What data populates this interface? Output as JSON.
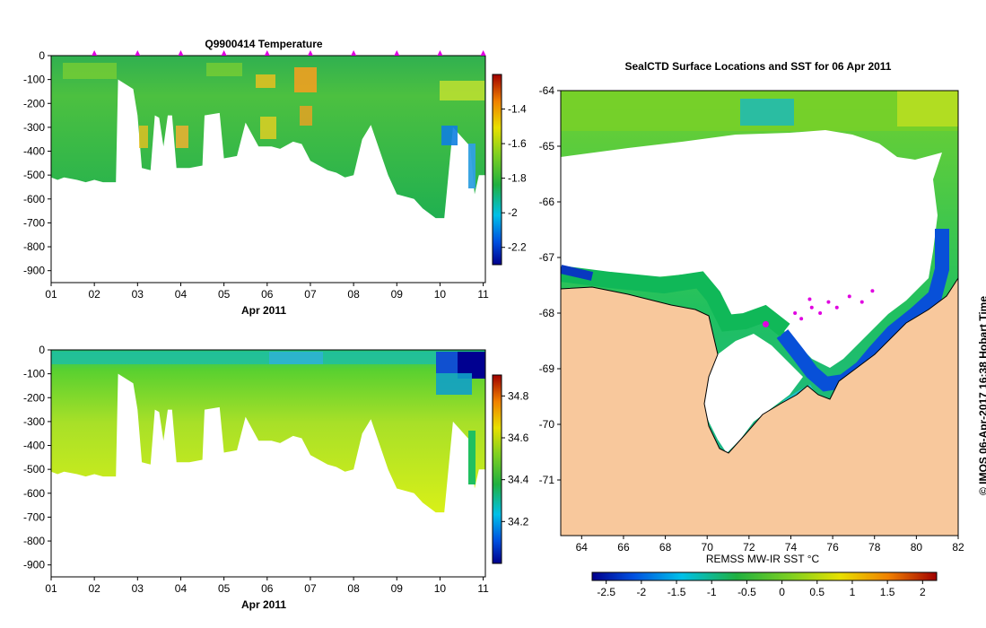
{
  "chart_data": [
    {
      "type": "heatmap",
      "id": "temperature-section",
      "title": "Q9900414  Temperature",
      "xlabel": "Apr 2011",
      "x_ticks": [
        "01",
        "02",
        "03",
        "04",
        "05",
        "06",
        "07",
        "08",
        "09",
        "10",
        "11"
      ],
      "xlim": [
        1,
        11.05
      ],
      "ylim": [
        0,
        -950
      ],
      "y_ticks": [
        0,
        -100,
        -200,
        -300,
        -400,
        -500,
        -600,
        -700,
        -800,
        -900
      ],
      "colorbar": {
        "min": -2.3,
        "max": -1.2,
        "ticks": [
          -1.4,
          -1.6,
          -1.8,
          -2,
          -2.2
        ]
      },
      "profile_markers": [
        2,
        3,
        4,
        5,
        6,
        7,
        8,
        9,
        10,
        11
      ],
      "profile_depths": [
        [
          1.0,
          -510
        ],
        [
          1.15,
          -520
        ],
        [
          1.3,
          -510
        ],
        [
          1.6,
          -520
        ],
        [
          1.8,
          -530
        ],
        [
          2.0,
          -520
        ],
        [
          2.2,
          -530
        ],
        [
          2.5,
          -530
        ],
        [
          2.55,
          -100
        ],
        [
          2.9,
          -140
        ],
        [
          3.0,
          -250
        ],
        [
          3.1,
          -470
        ],
        [
          3.3,
          -480
        ],
        [
          3.4,
          -250
        ],
        [
          3.5,
          -260
        ],
        [
          3.6,
          -380
        ],
        [
          3.7,
          -250
        ],
        [
          3.8,
          -250
        ],
        [
          3.9,
          -470
        ],
        [
          4.2,
          -470
        ],
        [
          4.5,
          -460
        ],
        [
          4.55,
          -250
        ],
        [
          4.9,
          -240
        ],
        [
          5.0,
          -430
        ],
        [
          5.3,
          -420
        ],
        [
          5.5,
          -280
        ],
        [
          5.8,
          -380
        ],
        [
          6.1,
          -380
        ],
        [
          6.3,
          -390
        ],
        [
          6.6,
          -360
        ],
        [
          6.8,
          -370
        ],
        [
          7.0,
          -440
        ],
        [
          7.2,
          -460
        ],
        [
          7.4,
          -480
        ],
        [
          7.6,
          -490
        ],
        [
          7.8,
          -510
        ],
        [
          8.0,
          -500
        ],
        [
          8.2,
          -350
        ],
        [
          8.4,
          -290
        ],
        [
          8.8,
          -500
        ],
        [
          9.0,
          -580
        ],
        [
          9.4,
          -600
        ],
        [
          9.6,
          -640
        ],
        [
          9.9,
          -680
        ],
        [
          10.1,
          -680
        ],
        [
          10.3,
          -300
        ],
        [
          10.7,
          -380
        ],
        [
          10.8,
          -580
        ],
        [
          10.9,
          -500
        ],
        [
          11.05,
          -500
        ]
      ]
    },
    {
      "type": "heatmap",
      "id": "salinity-section",
      "title": "",
      "xlabel": "Apr 2011",
      "x_ticks": [
        "01",
        "02",
        "03",
        "04",
        "05",
        "06",
        "07",
        "08",
        "09",
        "10",
        "11"
      ],
      "ylim": [
        0,
        -950
      ],
      "y_ticks": [
        0,
        -100,
        -200,
        -300,
        -400,
        -500,
        -600,
        -700,
        -800,
        -900
      ],
      "colorbar": {
        "min": 34.0,
        "max": 34.9,
        "ticks": [
          34.8,
          34.6,
          34.4,
          34.2
        ]
      }
    },
    {
      "type": "heatmap",
      "id": "sst-map",
      "title": "SealCTD Surface Locations and SST for 06 Apr 2011",
      "xlabel": "REMSS MW-IR SST °C",
      "xlim": [
        63,
        82
      ],
      "ylim": [
        -64,
        -72
      ],
      "x_ticks": [
        64,
        66,
        68,
        70,
        72,
        74,
        76,
        78,
        80,
        82
      ],
      "y_ticks": [
        -64,
        -65,
        -66,
        -67,
        -68,
        -69,
        -70,
        -71
      ],
      "colorbar": {
        "min": -2.7,
        "max": 2.2,
        "ticks": [
          -2.5,
          -2,
          -1.5,
          -1,
          -0.5,
          0,
          0.5,
          1,
          1.5,
          2
        ]
      },
      "seal_locations": [
        [
          72.8,
          -68.2
        ],
        [
          74.2,
          -68.0
        ],
        [
          74.5,
          -68.1
        ],
        [
          75.0,
          -67.9
        ],
        [
          75.4,
          -68.0
        ],
        [
          75.8,
          -67.8
        ],
        [
          76.2,
          -67.9
        ],
        [
          76.8,
          -67.7
        ],
        [
          77.4,
          -67.8
        ],
        [
          77.9,
          -67.6
        ],
        [
          74.9,
          -67.75
        ]
      ]
    }
  ],
  "footer_credit": "© IMOS 06-Apr-2017 16:38 Hobart Time"
}
